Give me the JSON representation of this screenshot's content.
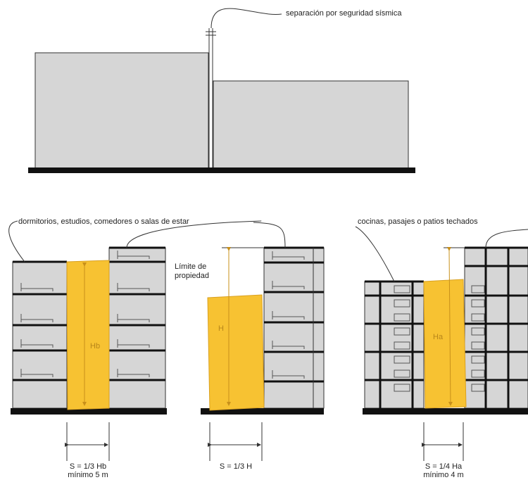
{
  "top_diagram": {
    "label": "separación por seguridad sísmica"
  },
  "sections": [
    {
      "label": "dormitorios, estudios, comedores o salas de estar",
      "height_label": "Hb",
      "formula": "S = 1/3 Hb",
      "minimum": "mínimo 5 m"
    },
    {
      "property_limit": [
        "Límite de",
        "propiedad"
      ],
      "height_label": "H",
      "formula": "S = 1/3 H"
    },
    {
      "label": "cocinas, pasajes o patios techados",
      "height_label": "Ha",
      "formula": "S = 1/4 Ha",
      "minimum": "mínimo 4 m"
    }
  ]
}
